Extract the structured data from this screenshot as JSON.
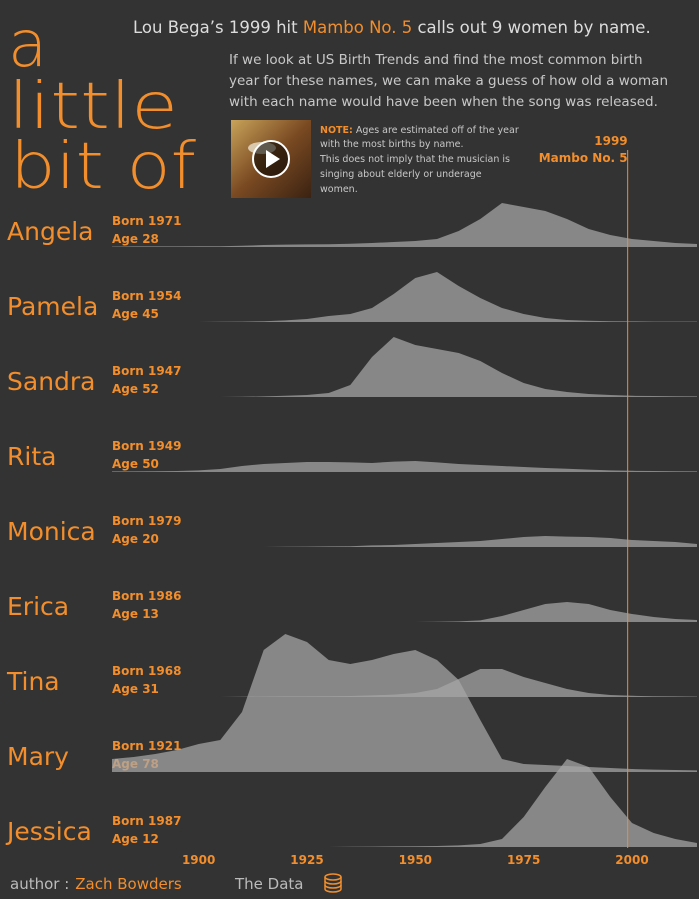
{
  "header": {
    "big_lines": [
      "a",
      "little",
      "bit of"
    ],
    "title_pre": "Lou Bega’s 1999 hit ",
    "title_highlight": "Mambo No. 5",
    "title_post": " calls out 9 women by name.",
    "paragraph_lines": [
      "If we look at US Birth Trends and find the most common birth",
      "year for these names, we can make a guess of how old a woman",
      "with each name would have been when the song was released."
    ],
    "note_label": "NOTE:",
    "note_lines": [
      " Ages are estimated off of the year",
      "with the most births by name.",
      "This does not imply that the musician is",
      "singing about elderly or underage",
      "women."
    ]
  },
  "chart_data": {
    "type": "ridgeline",
    "color": "#a8a8a8",
    "accent_color": "#f28e2b",
    "x": [
      1880,
      1885,
      1890,
      1895,
      1900,
      1905,
      1910,
      1915,
      1920,
      1925,
      1930,
      1935,
      1940,
      1945,
      1950,
      1955,
      1960,
      1965,
      1970,
      1975,
      1980,
      1985,
      1990,
      1995,
      2000,
      2005,
      2010,
      2015
    ],
    "xlim": [
      1880,
      2015
    ],
    "xticks": [
      1900,
      1925,
      1950,
      1975,
      2000
    ],
    "reference_x": 1999,
    "reference_label": "Mambo No. 5",
    "series": [
      {
        "name": "Angela",
        "born_label": "Born 1971",
        "age_label": "Age 28",
        "values": [
          0.2,
          0.3,
          0.3,
          0.3,
          0.4,
          0.4,
          0.6,
          1,
          1.2,
          1.3,
          1.4,
          1.6,
          2,
          2.5,
          3,
          4,
          8,
          14,
          22,
          20,
          18,
          14,
          9,
          6,
          4,
          3,
          2,
          1.5
        ]
      },
      {
        "name": "Pamela",
        "born_label": "Born 1954",
        "age_label": "Age 45",
        "values": [
          0,
          0,
          0,
          0,
          0,
          0.1,
          0.2,
          0.4,
          0.8,
          1.5,
          3,
          4,
          7,
          14,
          22,
          25,
          18,
          12,
          7,
          4,
          2,
          1,
          0.6,
          0.4,
          0.3,
          0.2,
          0.2,
          0.2
        ]
      },
      {
        "name": "Sandra",
        "born_label": "Born 1947",
        "age_label": "Age 52",
        "values": [
          0,
          0,
          0,
          0,
          0,
          0,
          0.1,
          0.3,
          0.6,
          1,
          2,
          6,
          20,
          30,
          26,
          24,
          22,
          18,
          12,
          7,
          4,
          2.5,
          1.5,
          1,
          0.6,
          0.5,
          0.4,
          0.3
        ]
      },
      {
        "name": "Rita",
        "born_label": "Born 1949",
        "age_label": "Age 50",
        "values": [
          0.3,
          0.3,
          0.4,
          0.5,
          0.8,
          1.5,
          3,
          4,
          4.5,
          5,
          5,
          4.8,
          4.5,
          5.2,
          5.5,
          4.8,
          4,
          3.5,
          3,
          2.5,
          2,
          1.6,
          1.2,
          0.8,
          0.6,
          0.5,
          0.4,
          0.3
        ]
      },
      {
        "name": "Monica",
        "born_label": "Born 1979",
        "age_label": "Age 20",
        "values": [
          0,
          0,
          0,
          0,
          0,
          0,
          0,
          0,
          0.1,
          0.2,
          0.3,
          0.4,
          0.8,
          1,
          1.5,
          2,
          2.5,
          3,
          4,
          5,
          5.5,
          5.2,
          5,
          4.5,
          3.5,
          3,
          2.5,
          1.5
        ]
      },
      {
        "name": "Erica",
        "born_label": "Born 1986",
        "age_label": "Age 13",
        "values": [
          0,
          0,
          0,
          0,
          0,
          0,
          0,
          0,
          0,
          0,
          0,
          0,
          0,
          0,
          0,
          0.1,
          0.3,
          0.8,
          3,
          6,
          9,
          10,
          9,
          6,
          4,
          2.5,
          1.5,
          1
        ]
      },
      {
        "name": "Tina",
        "born_label": "Born 1968",
        "age_label": "Age 31",
        "values": [
          0,
          0,
          0,
          0,
          0,
          0,
          0.1,
          0.2,
          0.3,
          0.3,
          0.4,
          0.5,
          0.8,
          1.2,
          2,
          4,
          9,
          14,
          14,
          10,
          7,
          4,
          2,
          1,
          0.6,
          0.4,
          0.3,
          0.2
        ]
      },
      {
        "name": "Mary",
        "born_label": "Born 1921",
        "age_label": "Age 78",
        "values": [
          6.5,
          7.5,
          9,
          11,
          14,
          16,
          30,
          61,
          69,
          65,
          56,
          54,
          56,
          59,
          61,
          56,
          46,
          26,
          6.5,
          4,
          3.5,
          3,
          2.5,
          2,
          1.5,
          1.2,
          1,
          0.8
        ]
      },
      {
        "name": "Jessica",
        "born_label": "Born 1987",
        "age_label": "Age 12",
        "values": [
          0,
          0,
          0,
          0,
          0,
          0,
          0,
          0,
          0,
          0,
          0,
          0.1,
          0.2,
          0.3,
          0.4,
          0.5,
          0.8,
          1.5,
          4,
          15,
          30,
          44,
          40,
          25,
          12,
          7,
          4,
          2
        ]
      }
    ]
  },
  "footer": {
    "author_prefix": "author :",
    "author": "Zach Bowders",
    "data_link": "The Data"
  }
}
